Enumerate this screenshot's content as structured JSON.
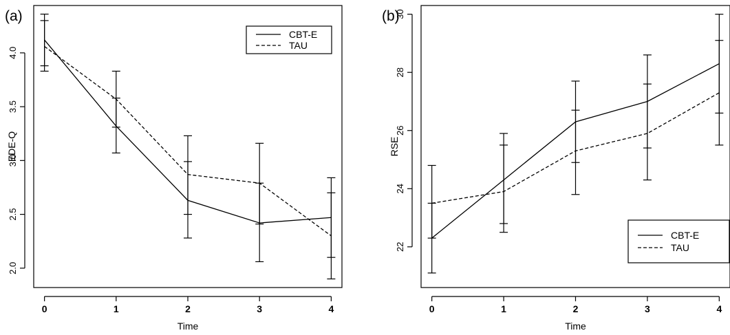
{
  "chart_data": [
    {
      "type": "line",
      "panel_label": "(a)",
      "xlabel": "Time",
      "ylabel": "EDE-Q",
      "x": [
        0,
        1,
        2,
        3,
        4
      ],
      "xlim": [
        -0.15,
        4.15
      ],
      "ylim": [
        1.82,
        4.44
      ],
      "yticks": [
        2.0,
        2.5,
        3.0,
        3.5,
        4.0
      ],
      "ytick_labels": [
        "2.0",
        "2.5",
        "3.0",
        "3.5",
        "4.0"
      ],
      "legend_position": "top-right",
      "series": [
        {
          "name": "CBT-E",
          "style": "solid",
          "values": [
            4.12,
            3.32,
            2.63,
            2.42,
            2.47
          ],
          "error_low": [
            3.88,
            3.07,
            2.28,
            2.06,
            2.1
          ],
          "error_high": [
            4.36,
            3.58,
            2.99,
            2.79,
            2.84
          ]
        },
        {
          "name": "TAU",
          "style": "dashed",
          "values": [
            4.06,
            3.57,
            2.87,
            2.79,
            2.3
          ],
          "error_low": [
            3.83,
            3.31,
            2.5,
            2.41,
            1.9
          ],
          "error_high": [
            4.3,
            3.83,
            3.23,
            3.16,
            2.7
          ]
        }
      ]
    },
    {
      "type": "line",
      "panel_label": "(b)",
      "xlabel": "Time",
      "ylabel": "RSE",
      "x": [
        0,
        1,
        2,
        3,
        4
      ],
      "xlim": [
        -0.15,
        4.15
      ],
      "ylim": [
        20.6,
        30.3
      ],
      "yticks": [
        22,
        24,
        26,
        28,
        30
      ],
      "ytick_labels": [
        "22",
        "24",
        "26",
        "28",
        "30"
      ],
      "legend_position": "bottom-right",
      "series": [
        {
          "name": "CBT-E",
          "style": "solid",
          "values": [
            22.3,
            24.3,
            26.3,
            27.0,
            28.3
          ],
          "error_low": [
            21.1,
            22.8,
            24.9,
            25.4,
            26.6
          ],
          "error_high": [
            23.5,
            25.9,
            27.7,
            28.6,
            30.0
          ]
        },
        {
          "name": "TAU",
          "style": "dashed",
          "values": [
            23.5,
            23.9,
            25.3,
            25.9,
            27.3
          ],
          "error_low": [
            22.3,
            22.5,
            23.8,
            24.3,
            25.5
          ],
          "error_high": [
            24.8,
            25.5,
            26.7,
            27.6,
            29.1
          ]
        }
      ]
    }
  ]
}
